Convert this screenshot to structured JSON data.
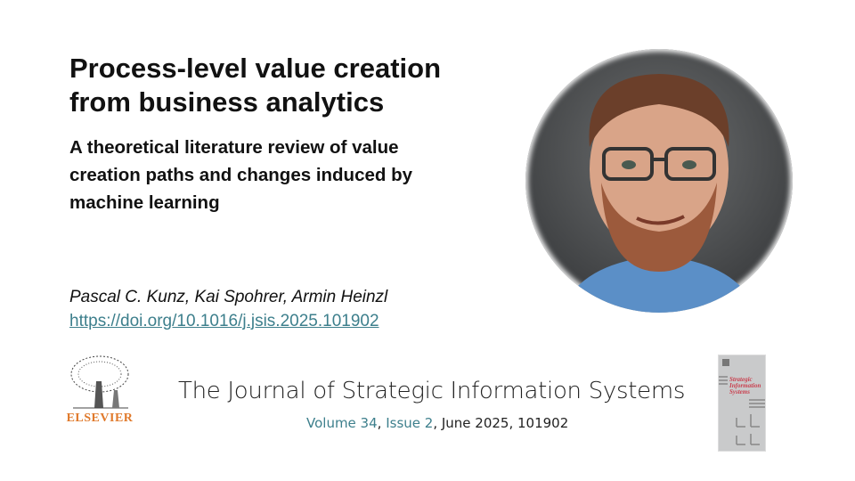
{
  "title": [
    "Process-level value creation",
    "from business analytics"
  ],
  "subtitle": [
    "A theoretical literature review of value",
    "creation paths and changes induced by",
    "machine learning"
  ],
  "authors": "Pascal C. Kunz, Kai Spohrer, Armin Heinzl",
  "doi": "https://doi.org/10.1016/j.jsis.2025.101902",
  "publisher_logo": "ELSEVIER",
  "journal": {
    "name": "The Journal of Strategic Information Systems",
    "volume": "Volume 34",
    "issue": "Issue 2",
    "date_article": ", June 2025, 101902",
    "sep": ", "
  },
  "cover_title": [
    "Strategic",
    "Information",
    "Systems"
  ],
  "colors": {
    "link": "#3d7f8c",
    "publisher": "#e07a2c",
    "cover_title": "#c9404f"
  }
}
